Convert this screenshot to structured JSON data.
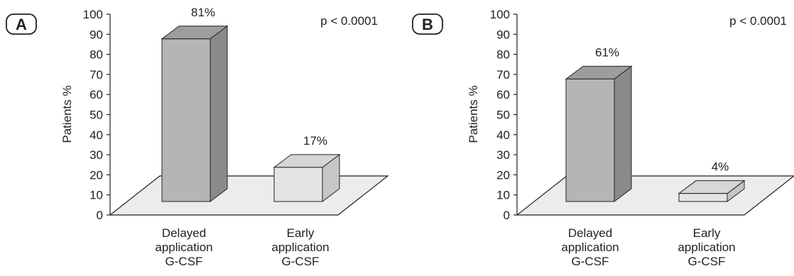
{
  "colors": {
    "floor_fill": "#ececec",
    "bar_front_gray": "#b5b5b5",
    "bar_side_gray": "#8a8a8a",
    "bar_top_gray": "#9d9d9d",
    "bar_front_light": "#e4e4e4",
    "bar_side_light": "#c6c6c6",
    "bar_top_light": "#d6d6d6",
    "outline": "#222222"
  },
  "chart_data": [
    {
      "type": "bar",
      "panel_label": "A",
      "annotation": "p < 0.0001",
      "ylabel": "Patients %",
      "ylim": [
        0,
        100
      ],
      "yticks": [
        "0",
        "10",
        "20",
        "30",
        "40",
        "50",
        "60",
        "70",
        "80",
        "90",
        "100"
      ],
      "categories": [
        [
          "Delayed",
          "application",
          "G-CSF"
        ],
        [
          "Early",
          "application",
          "G-CSF"
        ]
      ],
      "values": [
        81,
        17
      ],
      "value_labels": [
        "81%",
        "17%"
      ],
      "bar_styles": [
        "gray",
        "light"
      ]
    },
    {
      "type": "bar",
      "panel_label": "B",
      "annotation": "p < 0.0001",
      "ylabel": "Patients %",
      "ylim": [
        0,
        100
      ],
      "yticks": [
        "0",
        "10",
        "20",
        "30",
        "40",
        "50",
        "60",
        "70",
        "80",
        "90",
        "100"
      ],
      "categories": [
        [
          "Delayed",
          "application",
          "G-CSF"
        ],
        [
          "Early",
          "application",
          "G-CSF"
        ]
      ],
      "values": [
        61,
        4
      ],
      "value_labels": [
        "61%",
        "4%"
      ],
      "bar_styles": [
        "gray",
        "light"
      ]
    }
  ]
}
